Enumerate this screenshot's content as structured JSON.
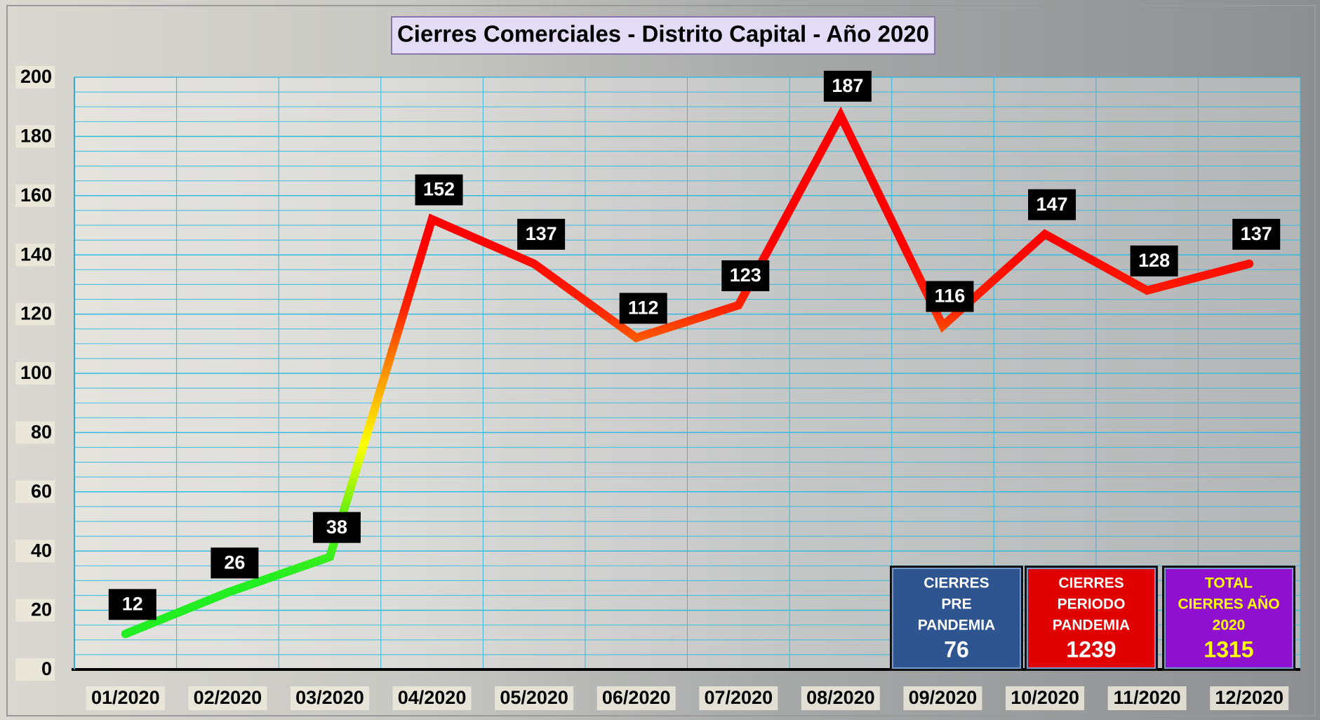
{
  "chart_data": {
    "type": "line",
    "title": "Cierres Comerciales - Distrito Capital - Año 2020",
    "categories": [
      "01/2020",
      "02/2020",
      "03/2020",
      "04/2020",
      "05/2020",
      "06/2020",
      "07/2020",
      "08/2020",
      "09/2020",
      "10/2020",
      "11/2020",
      "12/2020"
    ],
    "series": [
      {
        "values": [
          12,
          26,
          38,
          152,
          137,
          112,
          123,
          187,
          116,
          147,
          128,
          137
        ],
        "color_gradient": [
          "#22ee22",
          "#66ee11",
          "#ffff00",
          "#ff9900",
          "#ff2200",
          "#ff0000"
        ]
      }
    ],
    "ylim": [
      0,
      200
    ],
    "yticks": [
      0,
      20,
      40,
      60,
      80,
      100,
      120,
      140,
      160,
      180,
      200
    ],
    "minor_yticks": [
      5,
      10,
      15,
      25,
      30,
      35,
      45,
      50,
      55,
      65,
      70,
      75,
      85,
      90,
      95,
      105,
      110,
      115,
      125,
      130,
      135,
      145,
      150,
      155,
      165,
      170,
      175,
      185,
      190,
      195
    ],
    "grid": true,
    "grid_color": "#33bbdd",
    "summary_boxes": [
      {
        "label": [
          "CIERRES",
          "PRE",
          "PANDEMIA"
        ],
        "value": 76,
        "color": "#2e5590",
        "text_color": "#ffffff"
      },
      {
        "label": [
          "CIERRES",
          "PERIODO",
          "PANDEMIA"
        ],
        "value": 1239,
        "color": "#e00000",
        "text_color": "#ffffff"
      },
      {
        "label": [
          "TOTAL",
          "CIERRES AÑO",
          "2020"
        ],
        "value": 1315,
        "color": "#9010d0",
        "text_color": "#ffff00"
      }
    ]
  }
}
